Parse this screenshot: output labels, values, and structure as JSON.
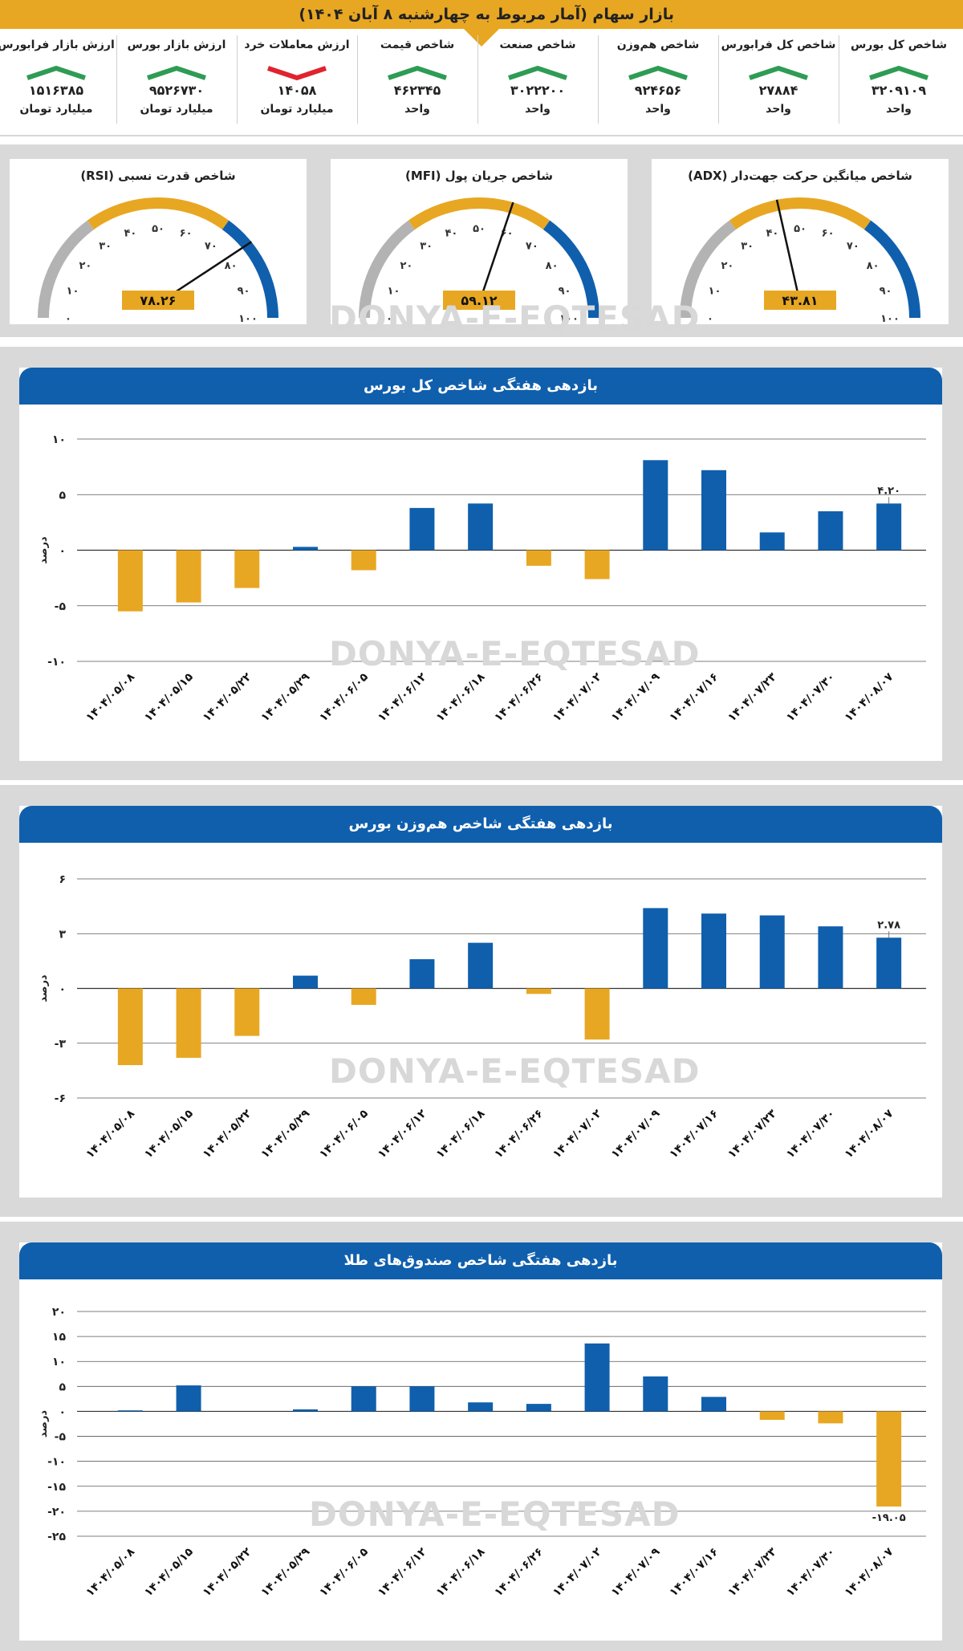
{
  "header": {
    "title": "بازار سهام (آمار مربوط به چهارشنبه ۸ آبان ۱۴۰۴)",
    "accent": "#e8a722"
  },
  "stats": [
    {
      "label": "شاخص کل بورس",
      "value": "۳۲۰۹۱۰۹",
      "unit": "واحد",
      "trend": "up"
    },
    {
      "label": "شاخص کل فرابورس",
      "value": "۲۷۸۸۴",
      "unit": "واحد",
      "trend": "up"
    },
    {
      "label": "شاخص هم‌وزن",
      "value": "۹۲۴۶۵۶",
      "unit": "واحد",
      "trend": "up"
    },
    {
      "label": "شاخص صنعت",
      "value": "۳۰۲۲۲۰۰",
      "unit": "واحد",
      "trend": "up"
    },
    {
      "label": "شاخص قیمت",
      "value": "۴۶۲۳۴۵",
      "unit": "واحد",
      "trend": "up"
    },
    {
      "label": "ارزش معاملات خرد",
      "value": "۱۴۰۵۸",
      "unit": "میلیارد تومان",
      "trend": "down"
    },
    {
      "label": "ارزش بازار بورس",
      "value": "۹۵۲۶۷۳۰",
      "unit": "میلیارد تومان",
      "trend": "up"
    },
    {
      "label": "ارزش بازار فرابورس",
      "value": "۱۵۱۶۳۸۵",
      "unit": "میلیارد تومان",
      "trend": "up"
    }
  ],
  "colors": {
    "up": "#2e9c54",
    "down": "#e0232e",
    "positive": "#0f5fad",
    "negative": "#e8a722",
    "gauge_gray": "#b3b3b3"
  },
  "gauges": [
    {
      "title": "شاخص میانگین حرکت جهت‌دار (ADX)",
      "value": 43.81,
      "display": "۴۳.۸۱"
    },
    {
      "title": "شاخص جریان پول (MFI)",
      "value": 59.12,
      "display": "۵۹.۱۲"
    },
    {
      "title": "شاخص قدرت نسبی (RSI)",
      "value": 78.26,
      "display": "۷۸.۲۶"
    }
  ],
  "gauge_ticks": [
    "۰",
    "۱۰",
    "۲۰",
    "۳۰",
    "۴۰",
    "۵۰",
    "۶۰",
    "۷۰",
    "۸۰",
    "۹۰",
    "۱۰۰"
  ],
  "chart_data": [
    {
      "type": "bar",
      "title": "بازدهی هفتگی شاخص کل بورس",
      "ylabel": "درصد",
      "categories": [
        "۱۴۰۴/۰۵/۰۸",
        "۱۴۰۴/۰۵/۱۵",
        "۱۴۰۴/۰۵/۲۲",
        "۱۴۰۴/۰۵/۲۹",
        "۱۴۰۴/۰۶/۰۵",
        "۱۴۰۴/۰۶/۱۲",
        "۱۴۰۴/۰۶/۱۸",
        "۱۴۰۴/۰۶/۲۶",
        "۱۴۰۴/۰۷/۰۲",
        "۱۴۰۴/۰۷/۰۹",
        "۱۴۰۴/۰۷/۱۶",
        "۱۴۰۴/۰۷/۲۳",
        "۱۴۰۴/۰۷/۳۰",
        "۱۴۰۴/۰۸/۰۷"
      ],
      "values": [
        -5.5,
        -4.7,
        -3.4,
        0.3,
        -1.8,
        3.8,
        4.2,
        -1.4,
        -2.6,
        8.1,
        7.2,
        1.6,
        3.5,
        4.2
      ],
      "ylim": [
        -10,
        10
      ],
      "yticks": [
        -10,
        -5,
        0,
        5,
        10
      ],
      "ytick_labels": [
        "-۱۰",
        "-۵",
        "۰",
        "۵",
        "۱۰"
      ],
      "annotation": "۴.۲۰"
    },
    {
      "type": "bar",
      "title": "بازدهی هفتگی شاخص هم‌وزن بورس",
      "ylabel": "درصد",
      "categories": [
        "۱۴۰۴/۰۵/۰۸",
        "۱۴۰۴/۰۵/۱۵",
        "۱۴۰۴/۰۵/۲۲",
        "۱۴۰۴/۰۵/۲۹",
        "۱۴۰۴/۰۶/۰۵",
        "۱۴۰۴/۰۶/۱۲",
        "۱۴۰۴/۰۶/۱۸",
        "۱۴۰۴/۰۶/۲۶",
        "۱۴۰۴/۰۷/۰۲",
        "۱۴۰۴/۰۷/۰۹",
        "۱۴۰۴/۰۷/۱۶",
        "۱۴۰۴/۰۷/۲۳",
        "۱۴۰۴/۰۷/۳۰",
        "۱۴۰۴/۰۸/۰۷"
      ],
      "values": [
        -4.2,
        -3.8,
        -2.6,
        0.7,
        -0.9,
        1.6,
        2.5,
        -0.3,
        -2.8,
        4.4,
        4.1,
        4.0,
        3.4,
        2.78
      ],
      "ylim": [
        -6,
        6
      ],
      "yticks": [
        -6,
        -3,
        0,
        3,
        6
      ],
      "ytick_labels": [
        "-۶",
        "-۳",
        "۰",
        "۳",
        "۶"
      ],
      "annotation": "۲.۷۸"
    },
    {
      "type": "bar",
      "title": "بازدهی هفتگی شاخص صندوق‌های طلا",
      "ylabel": "درصد",
      "categories": [
        "۱۴۰۴/۰۵/۰۸",
        "۱۴۰۴/۰۵/۱۵",
        "۱۴۰۴/۰۵/۲۲",
        "۱۴۰۴/۰۵/۲۹",
        "۱۴۰۴/۰۶/۰۵",
        "۱۴۰۴/۰۶/۱۲",
        "۱۴۰۴/۰۶/۱۸",
        "۱۴۰۴/۰۶/۲۶",
        "۱۴۰۴/۰۷/۰۲",
        "۱۴۰۴/۰۷/۰۹",
        "۱۴۰۴/۰۷/۱۶",
        "۱۴۰۴/۰۷/۲۳",
        "۱۴۰۴/۰۷/۳۰",
        "۱۴۰۴/۰۸/۰۷"
      ],
      "values": [
        0.2,
        5.2,
        0.0,
        0.4,
        5.0,
        5.0,
        1.8,
        1.5,
        13.6,
        7.0,
        2.9,
        -1.7,
        -2.4,
        -19.05
      ],
      "ylim": [
        -25,
        20
      ],
      "yticks": [
        -25,
        -20,
        -15,
        -10,
        -5,
        0,
        5,
        10,
        15,
        20
      ],
      "ytick_labels": [
        "-۲۵",
        "-۲۰",
        "-۱۵",
        "-۱۰",
        "-۵",
        "۰",
        "۵",
        "۱۰",
        "۱۵",
        "۲۰"
      ],
      "annotation": "-۱۹.۰۵"
    }
  ],
  "watermark": "DONYA-E-EQTESAD"
}
